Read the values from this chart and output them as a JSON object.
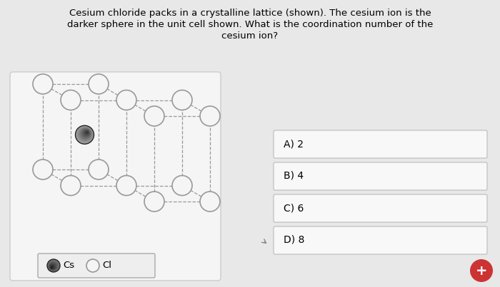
{
  "background_color": "#e8e8e8",
  "page_bg": "#f0f0f0",
  "title_lines": [
    "Cesium chloride packs in a crystalline lattice (shown). The cesium ion is the",
    "darker sphere in the unit cell shown. What is the coordination number of the",
    "cesium ion?"
  ],
  "title_fontsize": 9.5,
  "crystal_box_color": "#f5f5f5",
  "crystal_box_edge": "#cccccc",
  "answer_options": [
    "A) 2",
    "B) 4",
    "C) 6",
    "D) 8"
  ],
  "answer_fontsize": 10,
  "answer_box_color": "#f8f8f8",
  "answer_border_color": "#bbbbbb",
  "cl_sphere_color": "#f5f5f5",
  "cl_sphere_edge": "#999999",
  "cs_sphere_color_dark": "#3a3a3a",
  "cs_sphere_color_mid": "#707070",
  "cs_sphere_color_light": "#aaaaaa",
  "cs_sphere_edge": "#222222",
  "dline_color": "#999999",
  "plus_button_color": "#cc3333",
  "arrow_color": "#888888"
}
